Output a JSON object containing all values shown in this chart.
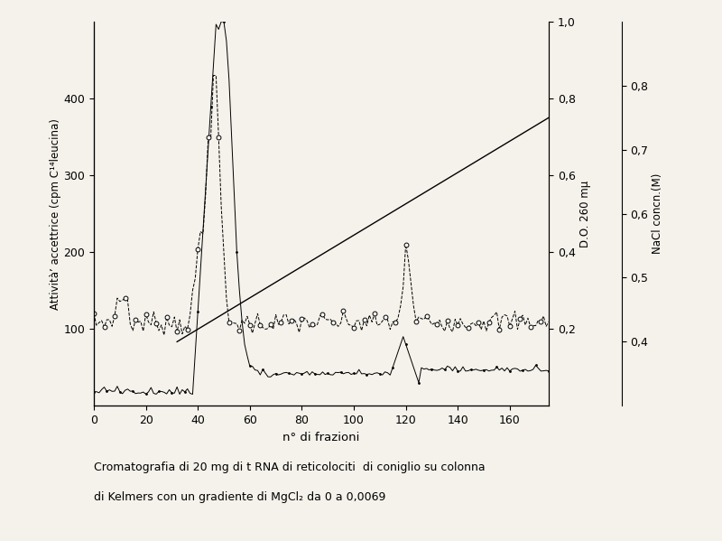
{
  "background_color": "#f5f2eb",
  "xlabel": "n° di frazioni",
  "ylabel_left": "Attività’ accettrice (cpm C¹⁴leucina)",
  "ylabel_right_do": "D.O. 260 mμ",
  "ylabel_right_nacl": "NaCl concn.(M)",
  "caption_line1": "Cromatografia di 20 mg di t RNA di reticolociti  di coniglio su colonna",
  "caption_line2": "di Kelmers con un gradiente di MgCl₂ da 0 a 0,0069",
  "xlim": [
    0,
    175
  ],
  "ylim_left": [
    0,
    500
  ],
  "xticks": [
    0,
    20,
    40,
    60,
    80,
    100,
    120,
    140,
    160
  ],
  "yticks_left": [
    100,
    200,
    300,
    400
  ],
  "do_yticks": [
    0.2,
    0.4,
    0.6,
    0.8,
    1.0
  ],
  "do_ytick_labels": [
    "0,2",
    "0,4",
    "0,6",
    "0,8",
    "1,0"
  ],
  "nacl_yticks": [
    0.4,
    0.5,
    0.6,
    0.7,
    0.8
  ],
  "nacl_ytick_labels": [
    "0,4",
    "0,5",
    "0,6",
    "0,7",
    "0,8"
  ],
  "nacl_line_x": [
    32,
    175
  ],
  "nacl_line_y": [
    0.4,
    0.75
  ]
}
